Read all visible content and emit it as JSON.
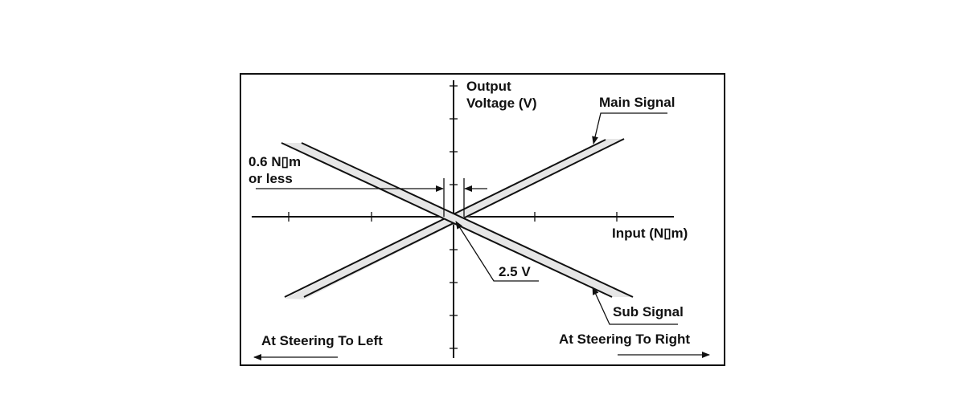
{
  "axes": {
    "y_label_line1": "Output",
    "y_label_line2": "Voltage (V)",
    "x_label": "Input (N▯m)"
  },
  "annotations": {
    "main_signal": "Main Signal",
    "sub_signal": "Sub Signal",
    "deadband_line1": "0.6 N▯m",
    "deadband_line2": "or less",
    "center_voltage": "2.5 V",
    "left_direction": "At Steering To Left",
    "right_direction": "At Steering To Right"
  },
  "colors": {
    "line": "#111111",
    "band": "#e6e6e6",
    "background": "#ffffff"
  }
}
